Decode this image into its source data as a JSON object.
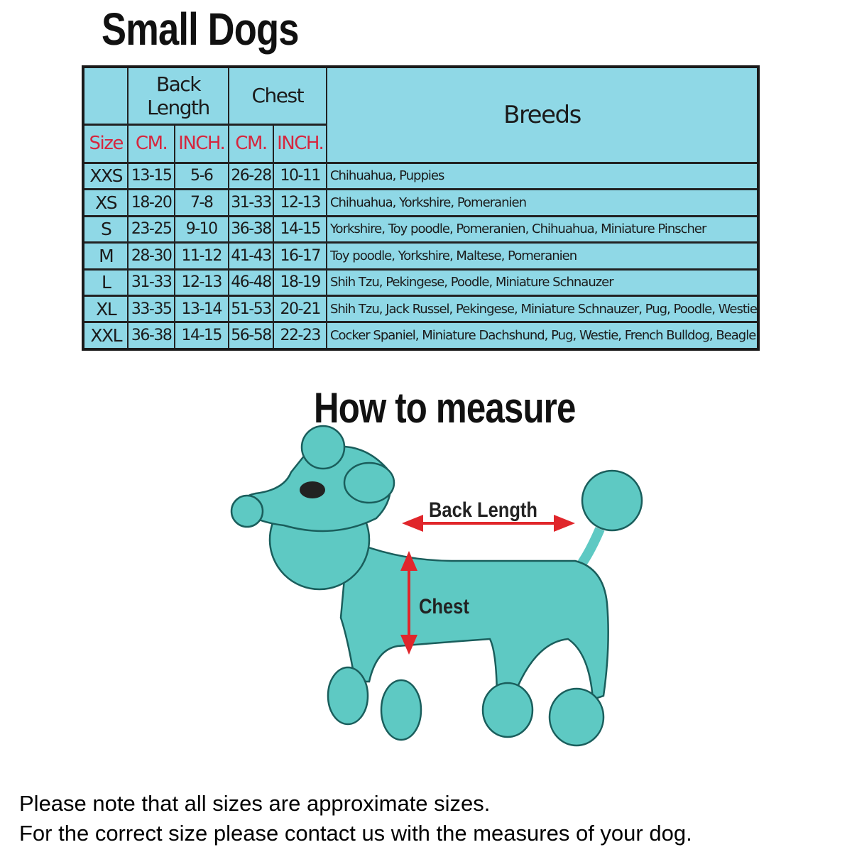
{
  "title": "Small Dogs",
  "table": {
    "group_headers": [
      "Back Length",
      "Chest",
      "Breeds"
    ],
    "sub_headers": [
      "Size",
      "CM.",
      "INCH.",
      "CM.",
      "INCH."
    ],
    "rows": [
      [
        "XXS",
        "13-15",
        "5-6",
        "26-28",
        "10-11",
        "Chihuahua, Puppies"
      ],
      [
        "XS",
        "18-20",
        "7-8",
        "31-33",
        "12-13",
        "Chihuahua, Yorkshire, Pomeranien"
      ],
      [
        "S",
        "23-25",
        "9-10",
        "36-38",
        "14-15",
        "Yorkshire, Toy poodle, Pomeranien, Chihuahua, Miniature Pinscher"
      ],
      [
        "M",
        "28-30",
        "11-12",
        "41-43",
        "16-17",
        "Toy poodle, Yorkshire, Maltese, Pomeranien"
      ],
      [
        "L",
        "31-33",
        "12-13",
        "46-48",
        "18-19",
        "Shih Tzu, Pekingese, Poodle, Miniature Schnauzer"
      ],
      [
        "XL",
        "33-35",
        "13-14",
        "51-53",
        "20-21",
        "Shih Tzu, Jack Russel, Pekingese, Miniature Schnauzer, Pug, Poodle, Westie"
      ],
      [
        "XXL",
        "36-38",
        "14-15",
        "56-58",
        "22-23",
        "Cocker Spaniel, Miniature Dachshund, Pug, Westie, French Bulldog, Beagle"
      ]
    ]
  },
  "measure": {
    "title": "How to measure",
    "back_label": "Back Length",
    "chest_label": "Chest"
  },
  "notes": [
    "Please note that all sizes are approximate sizes.",
    "For the correct size please contact us with the measures of your dog."
  ],
  "colors": {
    "table_bg": "#8fd8e6",
    "header_red": "#d6263e",
    "dog": "#5ec9c3",
    "arrow": "#e0262b"
  }
}
